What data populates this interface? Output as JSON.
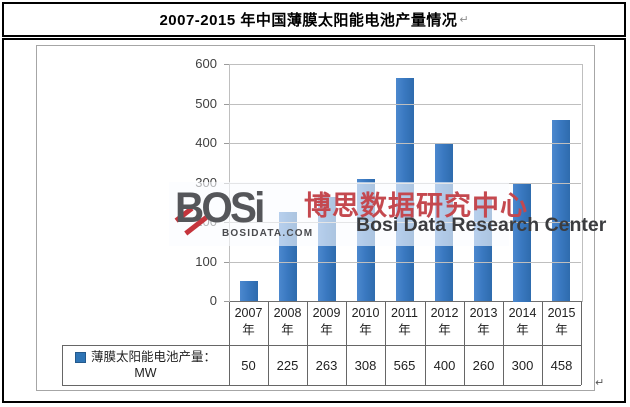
{
  "title_bar": {
    "text": "2007-2015 年中国薄膜太阳能电池产量情况",
    "return_mark": "↵"
  },
  "chart_data": {
    "type": "bar",
    "title": "2007-2015 年中国薄膜太阳能电池产量情况",
    "categories": [
      "2007年",
      "2008年",
      "2009年",
      "2010年",
      "2011年",
      "2012年",
      "2013年",
      "2014年",
      "2015年"
    ],
    "series": [
      {
        "name": "薄膜太阳能电池产量：MW",
        "values": [
          50,
          225,
          263,
          308,
          565,
          400,
          260,
          300,
          458
        ]
      }
    ],
    "xlabel": "",
    "ylabel": "",
    "ylim": [
      0,
      600
    ],
    "yticks": [
      0,
      100,
      200,
      300,
      400,
      500,
      600
    ],
    "grid": true,
    "legend_position": "data-table-left",
    "bar_color": "#3a79c1",
    "gridline_color": "#bfbfbf",
    "axis_text_color": "#404040"
  },
  "data_table": {
    "legend_line1": "薄膜太阳能电池产量：",
    "legend_line2": "MW",
    "legend_marker_color": "#2e74b5"
  },
  "watermark": {
    "logo_text": "BOSi",
    "logo_sub": "BOSIDATA.COM",
    "cn_text": "博思数据研究中心",
    "en_text": "Bosi Data Research Center",
    "red_color": "#c4484f",
    "gray_color": "#55565a"
  },
  "footer": {
    "return_mark": "↵"
  }
}
